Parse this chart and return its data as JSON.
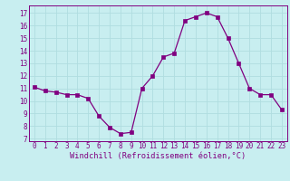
{
  "x": [
    0,
    1,
    2,
    3,
    4,
    5,
    6,
    7,
    8,
    9,
    10,
    11,
    12,
    13,
    14,
    15,
    16,
    17,
    18,
    19,
    20,
    21,
    22,
    23
  ],
  "y": [
    11.1,
    10.8,
    10.7,
    10.5,
    10.5,
    10.2,
    8.8,
    7.9,
    7.4,
    7.5,
    11.0,
    12.0,
    13.5,
    13.8,
    16.4,
    16.7,
    17.0,
    16.7,
    15.0,
    13.0,
    11.0,
    10.5,
    10.5,
    9.3
  ],
  "line_color": "#800080",
  "marker": "s",
  "marker_size": 2.2,
  "bg_color": "#c8eef0",
  "grid_color": "#b0dde0",
  "xlabel": "Windchill (Refroidissement éolien,°C)",
  "ylabel_ticks": [
    7,
    8,
    9,
    10,
    11,
    12,
    13,
    14,
    15,
    16,
    17
  ],
  "xlabel_ticks": [
    0,
    1,
    2,
    3,
    4,
    5,
    6,
    7,
    8,
    9,
    10,
    11,
    12,
    13,
    14,
    15,
    16,
    17,
    18,
    19,
    20,
    21,
    22,
    23
  ],
  "ylim": [
    6.8,
    17.6
  ],
  "xlim": [
    -0.5,
    23.5
  ],
  "tick_fontsize": 5.5,
  "xlabel_fontsize": 6.2,
  "spine_color": "#800080"
}
